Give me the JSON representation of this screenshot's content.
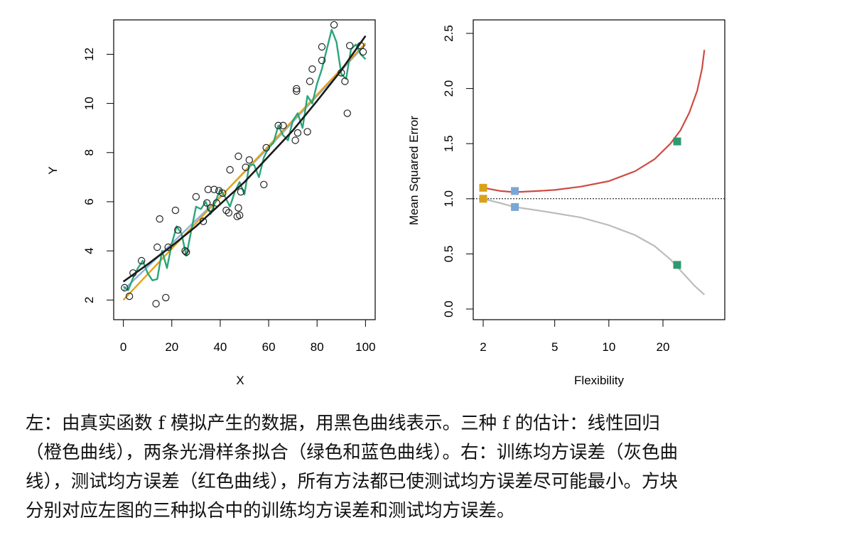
{
  "colors": {
    "truth": "#1a1a1a",
    "linear": "#e6a317",
    "smooth_blue": "#8fb3d9",
    "smooth_green": "#2aa57a",
    "train": "#bcbcbc",
    "test": "#cf4a43",
    "sq_orange": "#d9a019",
    "sq_blue": "#7aa6d6",
    "sq_green": "#2e9a70"
  },
  "chart_data": [
    {
      "type": "scatter",
      "xlabel": "X",
      "ylabel": "Y",
      "xlim": [
        -4,
        104
      ],
      "ylim": [
        1.2,
        13.4
      ],
      "xticks": [
        0,
        20,
        40,
        60,
        80,
        100
      ],
      "yticks": [
        2,
        4,
        6,
        8,
        10,
        12
      ],
      "points": [
        [
          0.5,
          2.5
        ],
        [
          2.5,
          2.15
        ],
        [
          4,
          3.1
        ],
        [
          7.5,
          3.6
        ],
        [
          13.5,
          1.85
        ],
        [
          14,
          4.15
        ],
        [
          15,
          5.3
        ],
        [
          17.5,
          2.1
        ],
        [
          18.5,
          4.15
        ],
        [
          21.5,
          5.65
        ],
        [
          22.5,
          4.85
        ],
        [
          25.5,
          4.0
        ],
        [
          26,
          3.95
        ],
        [
          30,
          6.2
        ],
        [
          33,
          5.2
        ],
        [
          34.5,
          5.95
        ],
        [
          35,
          6.5
        ],
        [
          36,
          5.75
        ],
        [
          37.5,
          6.5
        ],
        [
          38.5,
          5.95
        ],
        [
          39.5,
          6.45
        ],
        [
          41,
          6.35
        ],
        [
          42.5,
          5.65
        ],
        [
          43.5,
          5.55
        ],
        [
          44,
          7.3
        ],
        [
          47,
          5.4
        ],
        [
          47.5,
          5.75
        ],
        [
          47.5,
          7.85
        ],
        [
          48,
          5.45
        ],
        [
          48.5,
          6.4
        ],
        [
          50.5,
          7.4
        ],
        [
          52,
          7.7
        ],
        [
          58,
          6.7
        ],
        [
          59,
          8.2
        ],
        [
          64,
          9.1
        ],
        [
          66,
          9.1
        ],
        [
          71,
          8.5
        ],
        [
          71.5,
          10.6
        ],
        [
          71.5,
          10.5
        ],
        [
          72,
          8.8
        ],
        [
          76,
          8.85
        ],
        [
          77,
          10.9
        ],
        [
          78,
          11.4
        ],
        [
          82,
          12.3
        ],
        [
          82,
          11.75
        ],
        [
          87,
          13.2
        ],
        [
          90,
          11.25
        ],
        [
          91.5,
          10.9
        ],
        [
          92.5,
          9.6
        ],
        [
          93.5,
          12.35
        ],
        [
          98,
          12.35
        ],
        [
          99,
          12.1
        ]
      ],
      "lines": [
        {
          "name": "truth",
          "x": [
            0,
            10,
            20,
            30,
            40,
            50,
            60,
            70,
            80,
            90,
            100
          ],
          "y": [
            2.75,
            3.45,
            4.2,
            5.0,
            5.9,
            6.8,
            7.85,
            8.9,
            10.1,
            11.35,
            12.75
          ]
        },
        {
          "name": "linear",
          "x": [
            0,
            100
          ],
          "y": [
            2.0,
            12.45
          ]
        },
        {
          "name": "smooth-blue",
          "x": [
            0,
            20,
            40,
            60,
            80,
            100
          ],
          "y": [
            2.4,
            4.3,
            6.2,
            8.2,
            10.3,
            12.4
          ]
        },
        {
          "name": "smooth-green",
          "x": [
            0,
            2,
            4,
            6,
            8,
            10,
            12,
            14,
            16,
            18,
            20,
            22,
            24,
            26,
            28,
            30,
            32,
            34,
            36,
            38,
            40,
            42,
            44,
            46,
            48,
            50,
            52,
            54,
            56,
            58,
            60,
            62,
            64,
            66,
            68,
            70,
            72,
            74,
            76,
            78,
            80,
            82,
            84,
            86,
            88,
            90,
            92,
            94,
            96,
            98,
            100
          ],
          "y": [
            2.55,
            2.4,
            2.9,
            3.3,
            3.6,
            3.1,
            2.8,
            2.85,
            4.0,
            3.3,
            4.3,
            5.0,
            4.7,
            3.8,
            4.8,
            5.8,
            5.7,
            6.0,
            5.5,
            6.0,
            6.5,
            6.2,
            5.8,
            6.4,
            6.8,
            6.3,
            7.5,
            7.5,
            7.0,
            7.8,
            8.2,
            8.4,
            9.1,
            8.7,
            8.5,
            9.3,
            9.6,
            9.0,
            10.3,
            10.0,
            10.8,
            11.4,
            12.2,
            13.0,
            12.5,
            11.2,
            11.0,
            12.2,
            12.4,
            12.0,
            11.8
          ]
        }
      ]
    },
    {
      "type": "line",
      "xlabel": "Flexibility",
      "ylabel": "Mean Squared Error",
      "xscale": "log",
      "xlim": [
        2,
        35
      ],
      "ylim": [
        0,
        2.5
      ],
      "xticks": [
        2,
        5,
        10,
        20
      ],
      "yticks": [
        "0.0",
        "0.5",
        "1.0",
        "1.5",
        "2.0",
        "2.5"
      ],
      "series": [
        {
          "name": "train",
          "x": [
            2,
            2.5,
            3,
            4,
            5,
            7,
            10,
            14,
            18,
            22,
            26,
            30,
            34
          ],
          "y": [
            1.0,
            0.96,
            0.925,
            0.895,
            0.87,
            0.83,
            0.76,
            0.67,
            0.57,
            0.45,
            0.32,
            0.21,
            0.13
          ]
        },
        {
          "name": "test",
          "x": [
            2,
            2.5,
            3,
            4,
            5,
            7,
            10,
            14,
            18,
            22,
            25,
            28,
            31,
            33,
            34
          ],
          "y": [
            1.1,
            1.07,
            1.06,
            1.07,
            1.08,
            1.11,
            1.16,
            1.25,
            1.36,
            1.5,
            1.62,
            1.78,
            1.98,
            2.18,
            2.35
          ]
        }
      ],
      "reference_y": 1.0,
      "markers": [
        {
          "x": 2,
          "y": 1.1,
          "color": "sq_orange"
        },
        {
          "x": 2,
          "y": 1.0,
          "color": "sq_orange"
        },
        {
          "x": 3,
          "y": 1.07,
          "color": "sq_blue"
        },
        {
          "x": 3,
          "y": 0.925,
          "color": "sq_blue"
        },
        {
          "x": 24,
          "y": 1.52,
          "color": "sq_green"
        },
        {
          "x": 24,
          "y": 0.4,
          "color": "sq_green"
        }
      ]
    }
  ],
  "caption": [
    "左：由真实函数 f 模拟产生的数据，用黑色曲线表示。三种 f 的估计：线性回归",
    "（橙色曲线），两条光滑样条拟合（绿色和蓝色曲线）。右：训练均方误差（灰色曲",
    "线），测试均方误差（红色曲线），所有方法都已使测试均方误差尽可能最小。方块",
    "分别对应左图的三种拟合中的训练均方误差和测试均方误差。"
  ]
}
